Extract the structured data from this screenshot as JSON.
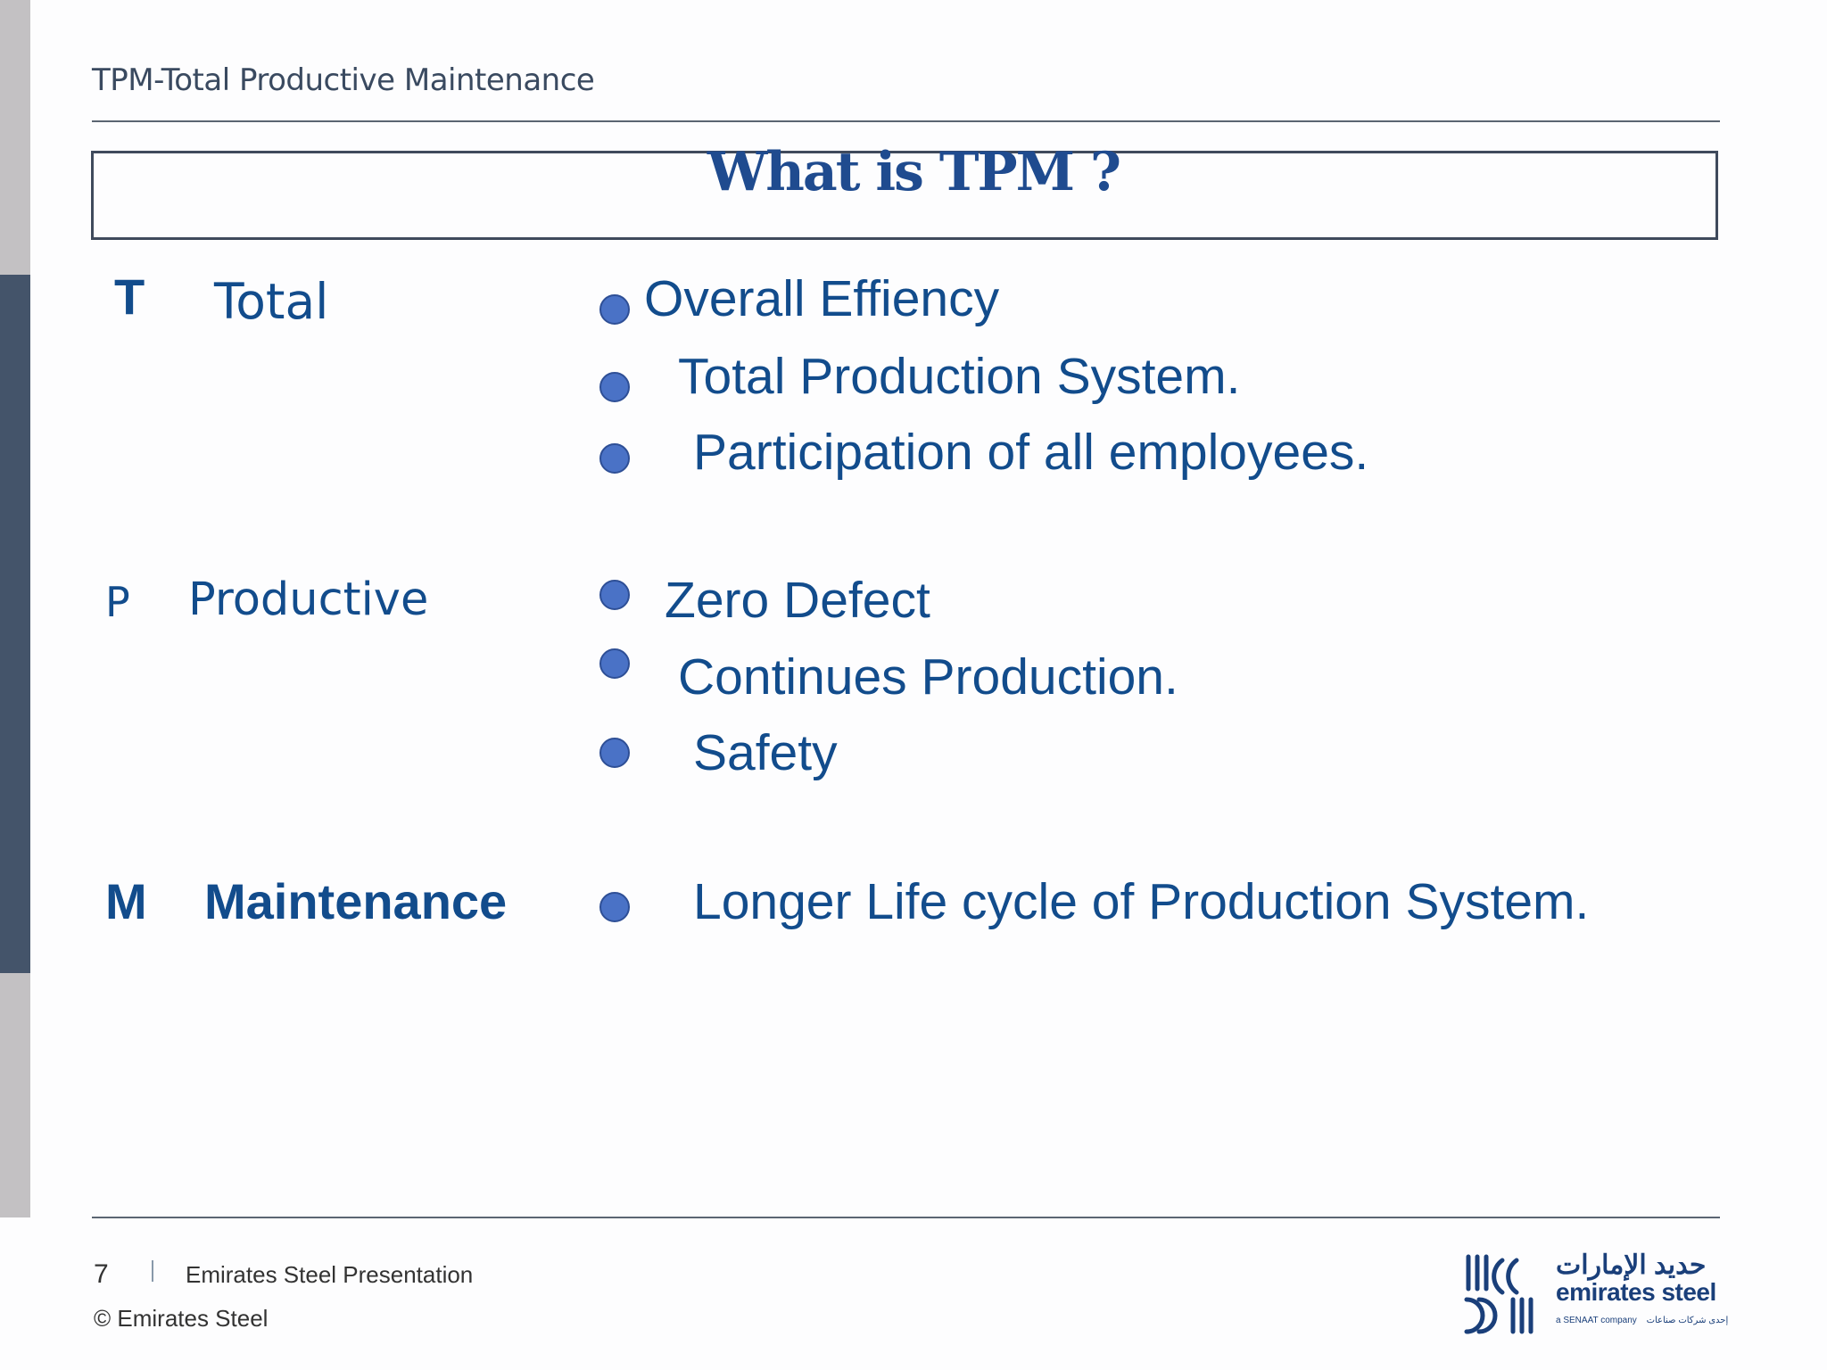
{
  "header": {
    "title": "TPM-Total Productive Maintenance"
  },
  "slide": {
    "title": "What is TPM  ?"
  },
  "sections": [
    {
      "letter": "T",
      "word": "Total",
      "bullets": [
        "Overall Effiency",
        "Total Production System.",
        "Participation of all employees."
      ]
    },
    {
      "letter": "P",
      "word": "Productive",
      "bullets": [
        "Zero Defect",
        "Continues Production.",
        "Safety"
      ]
    },
    {
      "letter": "M",
      "word": "Maintenance",
      "bullets": [
        "Longer Life cycle of Production System."
      ]
    }
  ],
  "footer": {
    "page_number": "7",
    "presentation": "Emirates Steel Presentation",
    "copyright": "© Emirates Steel"
  },
  "logo": {
    "name_en": "emirates steel",
    "name_ar": "حديد الإمارات",
    "tagline": "a SENAAT company",
    "tagline_ar": "إحدى شركات صناعات"
  },
  "colors": {
    "accent_bar": "#44546a",
    "text_blue": "#124c8c",
    "bullet": "#4a72c6",
    "gray_bar": "#c3c1c3"
  }
}
